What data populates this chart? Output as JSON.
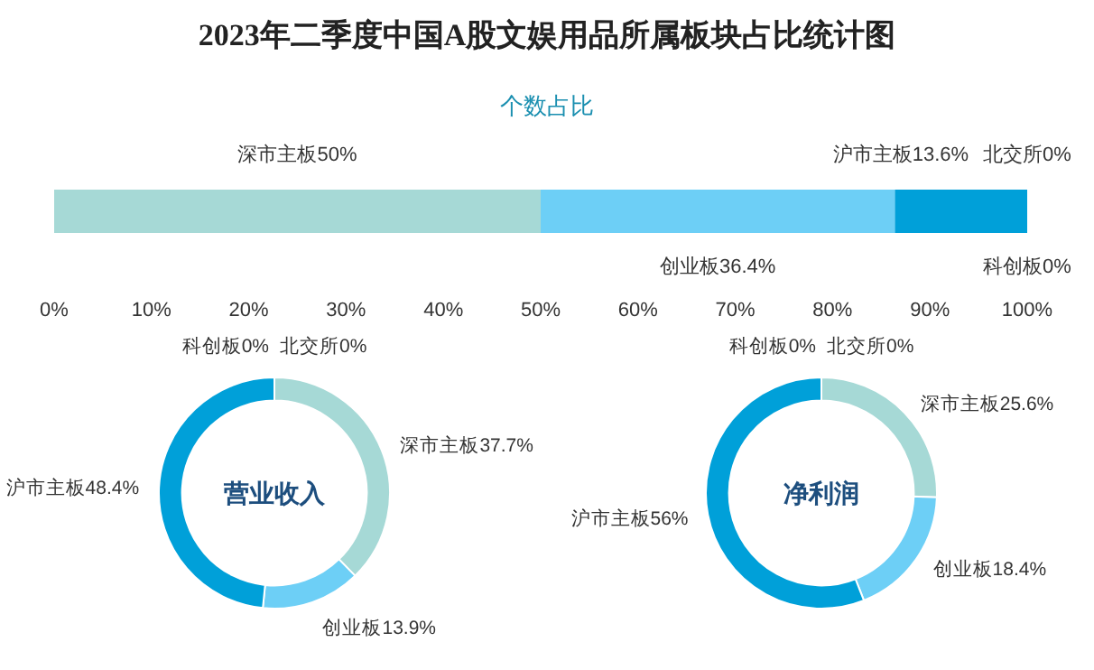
{
  "chart_data": [
    {
      "type": "bar",
      "title": "2023年二季度中国A股文娱用品所属板块占比统计图",
      "subtitle": "个数占比",
      "orientation": "horizontal",
      "stacked": true,
      "categories": [
        null
      ],
      "xlim": [
        0,
        100
      ],
      "xticks": [
        {
          "value": 0,
          "label": "0%"
        },
        {
          "value": 10,
          "label": "10%"
        },
        {
          "value": 20,
          "label": "20%"
        },
        {
          "value": 30,
          "label": "30%"
        },
        {
          "value": 40,
          "label": "40%"
        },
        {
          "value": 50,
          "label": "50%"
        },
        {
          "value": 60,
          "label": "60%"
        },
        {
          "value": 70,
          "label": "70%"
        },
        {
          "value": 80,
          "label": "80%"
        },
        {
          "value": 90,
          "label": "90%"
        },
        {
          "value": 100,
          "label": "100%"
        }
      ],
      "series": [
        {
          "name": "深市主板",
          "color": "#a6d9d6",
          "values": [
            50
          ],
          "value_labels": [
            "50%"
          ]
        },
        {
          "name": "创业板",
          "color": "#6dcff6",
          "values": [
            36.4
          ],
          "value_labels": [
            "36.4%"
          ]
        },
        {
          "name": "沪市主板",
          "color": "#00a0d9",
          "values": [
            13.6
          ],
          "value_labels": [
            "13.6%"
          ]
        },
        {
          "name": "科创板",
          "color": "#1a6fa0",
          "values": [
            0
          ],
          "value_labels": [
            "0%"
          ]
        },
        {
          "name": "北交所",
          "color": "#0a4f80",
          "values": [
            0
          ],
          "value_labels": [
            "0%"
          ]
        }
      ]
    },
    {
      "type": "donut",
      "title": "营业收入",
      "categories": [
        "北交所",
        "深市主板",
        "创业板",
        "沪市主板",
        "科创板"
      ],
      "values": [
        0,
        37.7,
        13.9,
        48.4,
        0
      ],
      "value_labels": [
        "0%",
        "37.7%",
        "13.9%",
        "48.4%",
        "0%"
      ],
      "colors": [
        "#0a4f80",
        "#a6d9d6",
        "#6dcff6",
        "#00a0d9",
        "#1a6fa0"
      ]
    },
    {
      "type": "donut",
      "title": "净利润",
      "categories": [
        "北交所",
        "深市主板",
        "创业板",
        "沪市主板",
        "科创板"
      ],
      "values": [
        0,
        25.6,
        18.4,
        56,
        0
      ],
      "value_labels": [
        "0%",
        "25.6%",
        "18.4%",
        "56%",
        "0%"
      ],
      "colors": [
        "#0a4f80",
        "#a6d9d6",
        "#6dcff6",
        "#00a0d9",
        "#1a6fa0"
      ]
    }
  ]
}
